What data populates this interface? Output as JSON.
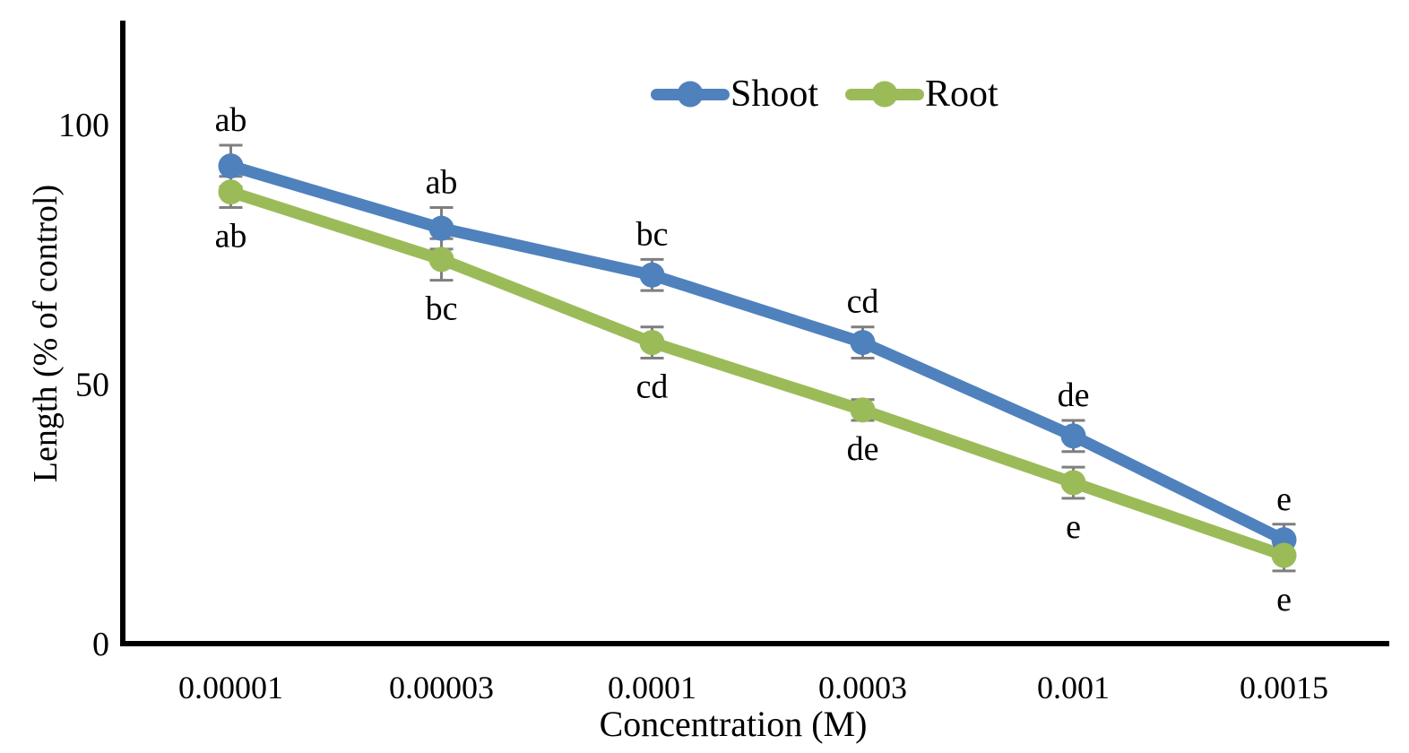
{
  "chart_data": {
    "type": "line",
    "title": "",
    "xlabel": "Concentration (M)",
    "ylabel": "Length (% of control)",
    "categories": [
      "0.00001",
      "0.00003",
      "0.0001",
      "0.0003",
      "0.001",
      "0.0015"
    ],
    "y_ticks": [
      0,
      50,
      100
    ],
    "ylim": [
      0,
      120
    ],
    "grid": false,
    "legend_position": "top-center",
    "axis_color": "#000000",
    "error_bar_color": "#7F7F7F",
    "series": [
      {
        "name": "Shoot",
        "color": "#4F81BD",
        "values": [
          92,
          80,
          71,
          58,
          40,
          20
        ],
        "errors": [
          4,
          4,
          3,
          3,
          3,
          3
        ],
        "point_labels": [
          "ab",
          "ab",
          "bc",
          "cd",
          "de",
          "e"
        ],
        "label_side": "above"
      },
      {
        "name": "Root",
        "color": "#9BBB59",
        "values": [
          87,
          74,
          58,
          45,
          31,
          17
        ],
        "errors": [
          3,
          4,
          3,
          2,
          3,
          3
        ],
        "point_labels": [
          "ab",
          "bc",
          "cd",
          "de",
          "e",
          "e"
        ],
        "label_side": "below"
      }
    ]
  }
}
